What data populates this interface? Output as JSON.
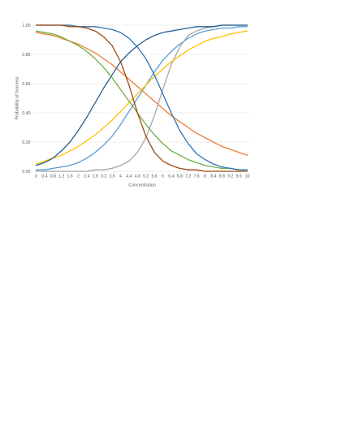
{
  "chart_data": {
    "type": "line",
    "title": "",
    "xlabel": "Concentration",
    "ylabel": "Probability of Success",
    "ylim": [
      0,
      1
    ],
    "yticks": [
      "0.00",
      "0.20",
      "0.40",
      "0.60",
      "0.80",
      "1.00"
    ],
    "grid": "horizontal",
    "legend": "none",
    "categories": [
      "0",
      "0.4",
      "0.8",
      "1.2",
      "1.6",
      "2",
      "2.4",
      "2.8",
      "3.2",
      "3.6",
      "4",
      "4.4",
      "4.8",
      "5.2",
      "5.6",
      "6",
      "6.4",
      "6.8",
      "7.2",
      "7.6",
      "8",
      "8.4",
      "8.8",
      "9.2",
      "9.6",
      "10"
    ],
    "series": [
      {
        "color": "#5b9bd5",
        "values": [
          0.01,
          0.01,
          0.02,
          0.03,
          0.04,
          0.06,
          0.09,
          0.13,
          0.18,
          0.24,
          0.32,
          0.41,
          0.5,
          0.59,
          0.68,
          0.76,
          0.82,
          0.87,
          0.91,
          0.94,
          0.96,
          0.97,
          0.98,
          0.98,
          0.99,
          0.99
        ]
      },
      {
        "color": "#ed7d31",
        "values": [
          0.95,
          0.94,
          0.93,
          0.91,
          0.89,
          0.87,
          0.84,
          0.81,
          0.77,
          0.73,
          0.68,
          0.63,
          0.58,
          0.53,
          0.48,
          0.43,
          0.38,
          0.34,
          0.3,
          0.26,
          0.23,
          0.2,
          0.17,
          0.15,
          0.13,
          0.11
        ]
      },
      {
        "color": "#a5a5a5",
        "values": [
          0.0,
          0.0,
          0.0,
          0.0,
          0.0,
          0.0,
          0.0,
          0.01,
          0.01,
          0.02,
          0.04,
          0.07,
          0.13,
          0.23,
          0.38,
          0.56,
          0.73,
          0.85,
          0.93,
          0.96,
          0.98,
          0.99,
          1.0,
          1.0,
          1.0,
          1.0
        ]
      },
      {
        "color": "#ffc000",
        "values": [
          0.05,
          0.07,
          0.09,
          0.11,
          0.14,
          0.17,
          0.21,
          0.25,
          0.3,
          0.35,
          0.41,
          0.47,
          0.53,
          0.59,
          0.65,
          0.7,
          0.75,
          0.79,
          0.83,
          0.86,
          0.89,
          0.91,
          0.92,
          0.94,
          0.95,
          0.96
        ]
      },
      {
        "color": "#255e91",
        "values": [
          0.04,
          0.06,
          0.09,
          0.14,
          0.2,
          0.28,
          0.37,
          0.47,
          0.57,
          0.66,
          0.75,
          0.81,
          0.86,
          0.9,
          0.93,
          0.95,
          0.96,
          0.97,
          0.98,
          0.99,
          0.99,
          0.99,
          1.0,
          1.0,
          1.0,
          1.0
        ]
      },
      {
        "color": "#70ad47",
        "values": [
          0.96,
          0.95,
          0.94,
          0.92,
          0.89,
          0.86,
          0.82,
          0.77,
          0.71,
          0.64,
          0.56,
          0.48,
          0.4,
          0.32,
          0.25,
          0.19,
          0.14,
          0.11,
          0.08,
          0.06,
          0.04,
          0.03,
          0.02,
          0.02,
          0.01,
          0.01
        ]
      },
      {
        "color": "#2e75b6",
        "values": [
          1.0,
          1.0,
          1.0,
          1.0,
          1.0,
          0.99,
          0.99,
          0.99,
          0.98,
          0.97,
          0.95,
          0.91,
          0.85,
          0.77,
          0.66,
          0.53,
          0.4,
          0.28,
          0.19,
          0.12,
          0.08,
          0.05,
          0.03,
          0.02,
          0.01,
          0.01
        ]
      },
      {
        "color": "#9e480e",
        "values": [
          1.0,
          1.0,
          1.0,
          1.0,
          0.99,
          0.99,
          0.98,
          0.96,
          0.92,
          0.86,
          0.75,
          0.59,
          0.4,
          0.24,
          0.13,
          0.07,
          0.04,
          0.02,
          0.01,
          0.01,
          0.0,
          0.0,
          0.0,
          0.0,
          0.0,
          0.0
        ]
      }
    ],
    "colors": {
      "gridline": "#d9d9d9",
      "label": "#595959"
    }
  }
}
